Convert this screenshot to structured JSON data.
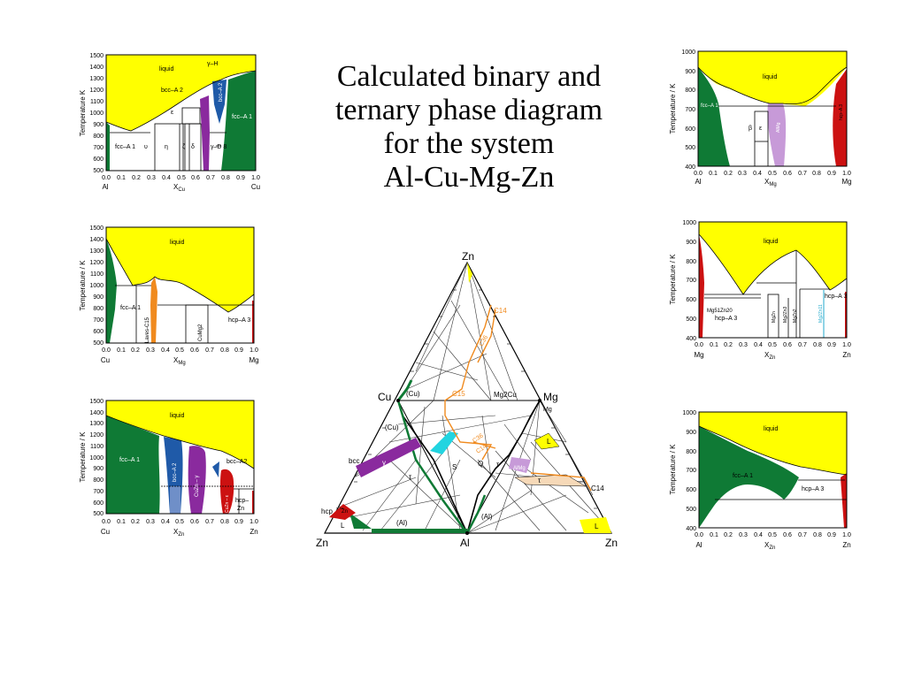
{
  "title_lines": [
    "Calculated binary and",
    "ternary phase diagram",
    "for the system",
    "Al-Cu-Mg-Zn"
  ],
  "colors": {
    "liquid": "#ffff00",
    "fcc": "#0f7a35",
    "bcc": "#1f5aa8",
    "laves": "#f08a1e",
    "gamma": "#8a2a9e",
    "hcp": "#cc1111",
    "almg": "#c79ad8",
    "tau": "#f6d9b8",
    "cyan": "#22d4e0",
    "light_blue": "#6f8fc8"
  },
  "common": {
    "temperature_label": "Temperature / K",
    "temperature_label_k": "Temperature  K"
  },
  "plots": {
    "alcu": {
      "yticks": [
        "1500",
        "1400",
        "1300",
        "1200",
        "1100",
        "1000",
        "900",
        "800",
        "700",
        "600",
        "500"
      ],
      "xticks": [
        "0.0",
        "0.1",
        "0.2",
        "0.3",
        "0.4",
        "0.5",
        "0.6",
        "0.7",
        "0.8",
        "0.9",
        "1.0"
      ],
      "left_el": "Al",
      "right_el": "Cu",
      "xlabel": "X",
      "xsub": "Cu",
      "labels": {
        "liquid": "liquid",
        "gammaH": "γ–H",
        "bccA2": "bcc–A 2",
        "bccA2v": "bcc–A 2",
        "eps": "ε",
        "fccA1r": "fcc–A 1",
        "fccA1l": "fcc–A 1",
        "eta": "η",
        "theta": "υ",
        "zeta": "ζ",
        "delta": "δ",
        "gammaD": "γ–D 8"
      }
    },
    "cumg": {
      "yticks": [
        "1500",
        "1400",
        "1300",
        "1200",
        "1100",
        "1000",
        "900",
        "800",
        "700",
        "600",
        "500"
      ],
      "xticks": [
        "0.0",
        "0.1",
        "0.2",
        "0.3",
        "0.4",
        "0.5",
        "0.6",
        "0.7",
        "0.8",
        "0.9",
        "1.0"
      ],
      "left_el": "Cu",
      "right_el": "Mg",
      "xlabel": "X",
      "xsub": "Mg",
      "labels": {
        "liquid": "liquid",
        "fcc": "fcc–A 1",
        "laves": "Laves-C15",
        "cumg2": "CuMg2",
        "hcp": "hcp–A 3"
      }
    },
    "cuzn": {
      "yticks": [
        "1500",
        "1400",
        "1300",
        "1200",
        "1100",
        "1000",
        "900",
        "800",
        "700",
        "600",
        "500"
      ],
      "xticks": [
        "0.0",
        "0.1",
        "0.2",
        "0.3",
        "0.4",
        "0.5",
        "0.6",
        "0.7",
        "0.8",
        "0.9",
        "1.0"
      ],
      "left_el": "Cu",
      "right_el": "Zn",
      "xlabel": "X",
      "xsub": "Zn",
      "labels": {
        "liquid": "liquid",
        "fcc": "fcc–A 1",
        "bcc": "bcc–A 2",
        "gamma": "CuZn – γ",
        "eps": "CuZn – ε",
        "bcc2": "bcc–A2",
        "hcp": "hcp–",
        "zn": "Zn"
      }
    },
    "almg": {
      "yticks": [
        "1000",
        "900",
        "800",
        "700",
        "600",
        "500",
        "400"
      ],
      "xticks": [
        "0.0",
        "0.1",
        "0.2",
        "0.3",
        "0.4",
        "0.5",
        "0.6",
        "0.7",
        "0.8",
        "0.9",
        "1.0"
      ],
      "left_el": "Al",
      "right_el": "Mg",
      "xlabel": "X",
      "xsub": "Mg",
      "labels": {
        "liquid": "liquid",
        "fcc": "fcc–A 1",
        "beta": "β",
        "eps": "ε",
        "almg": "AlMg",
        "hcp": "hcp–A 3"
      }
    },
    "mgzn": {
      "yticks": [
        "1000",
        "900",
        "800",
        "700",
        "600",
        "500",
        "400"
      ],
      "xticks": [
        "0.0",
        "0.1",
        "0.2",
        "0.3",
        "0.4",
        "0.5",
        "0.6",
        "0.7",
        "0.8",
        "0.9",
        "1.0"
      ],
      "left_el": "Mg",
      "right_el": "Zn",
      "xlabel": "X",
      "xsub": "Zn",
      "labels": {
        "liquid": "liquid",
        "hcp_r": "hcp–A 3",
        "mg51": "Mg51Zn20",
        "hcp_l": "hcp–A 3",
        "mgzn": "MgZn",
        "mg2zn3": "Mg2Zn3",
        "mgzn2": "MgZn2",
        "mg2zn11": "Mg2Zn11"
      }
    },
    "alzn": {
      "yticks": [
        "1000",
        "900",
        "800",
        "700",
        "600",
        "500",
        "400"
      ],
      "xticks": [
        "0.0",
        "0.1",
        "0.2",
        "0.3",
        "0.4",
        "0.5",
        "0.6",
        "0.7",
        "0.8",
        "0.9",
        "1.0"
      ],
      "left_el": "Al",
      "right_el": "Zn",
      "xlabel": "X",
      "xsub": "Zn",
      "labels": {
        "liquid": "liquid",
        "fcc": "fcc–A 1",
        "hcp": "hcp–A 3"
      }
    }
  },
  "ternary": {
    "vertices": {
      "top": "Zn",
      "cu": "Cu",
      "mg": "Mg",
      "bl": "Zn",
      "bc": "Al",
      "br": "Zn"
    },
    "labels": {
      "c14_top": "C14",
      "c36_top": "C36",
      "c15": "C15",
      "mg2cu": "Mg2Cu",
      "mg_small": "Mg",
      "cu_p1": "(Cu)",
      "cu_p2": "(Cu)",
      "bcc": "bcc",
      "gamma": "γ",
      "tau1": "τ",
      "S": "S",
      "Q": "Q",
      "tau2": "τ",
      "almg": "AlMg",
      "tau3": "τ",
      "L1": "L",
      "L2": "L",
      "L3": "L",
      "c14_r": "C14",
      "c36_m": "C36",
      "c14_m": "C14",
      "hcp": "hcp",
      "al1": "(Al)",
      "al2": "(Al)",
      "zn_small": "Zn"
    }
  }
}
